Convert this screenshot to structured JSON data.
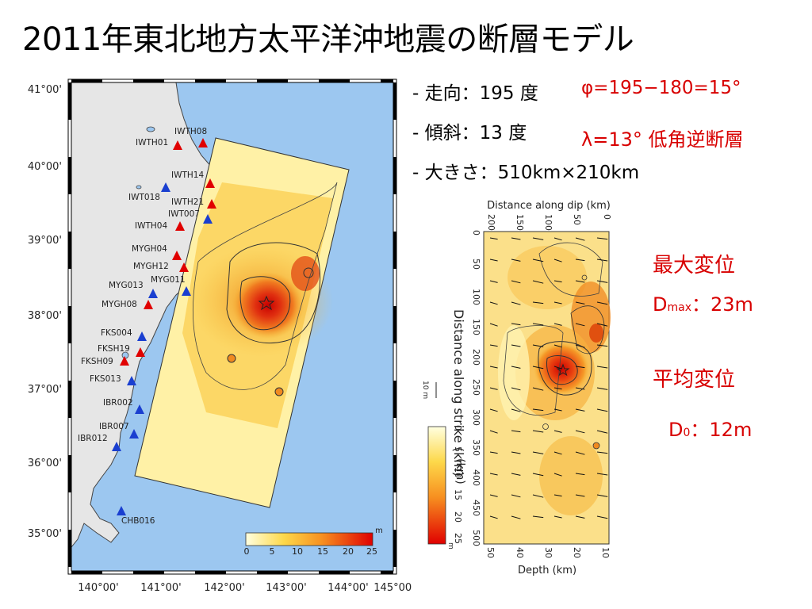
{
  "title": "2011年東北地方太平洋沖地震の断層モデル",
  "params": {
    "strike": "- 走向：195 度",
    "dip": "- 傾斜：13 度",
    "size": "- 大きさ：510km×210km",
    "phi": "φ=195−180=15°",
    "lambda": "λ=13° 低角逆断層"
  },
  "annotations": {
    "max_label": "最大変位",
    "max_D": "D",
    "max_sub": "max",
    "max_value": "：23m",
    "avg_label": "平均変位",
    "avg_D": "D",
    "avg_sub": "0",
    "avg_value": "：12m"
  },
  "map": {
    "lat_labels": [
      "41°00'",
      "40°00'",
      "39°00'",
      "38°00'",
      "37°00'",
      "36°00'",
      "35°00'"
    ],
    "lon_labels": [
      "140°00'",
      "141°00'",
      "142°00'",
      "143°00'",
      "144°00'",
      "145°00'"
    ],
    "stations": [
      {
        "name": "IWTH08",
        "type": "red"
      },
      {
        "name": "IWTH01",
        "type": "red"
      },
      {
        "name": "IWTH14",
        "type": "red"
      },
      {
        "name": "IWT018",
        "type": "blue"
      },
      {
        "name": "IWTH21",
        "type": "red"
      },
      {
        "name": "IWT007",
        "type": "blue"
      },
      {
        "name": "IWTH04",
        "type": "red"
      },
      {
        "name": "MYGH04",
        "type": "red"
      },
      {
        "name": "MYGH12",
        "type": "red"
      },
      {
        "name": "MYG013",
        "type": "blue"
      },
      {
        "name": "MYG011",
        "type": "blue"
      },
      {
        "name": "MYGH08",
        "type": "red"
      },
      {
        "name": "FKS004",
        "type": "blue"
      },
      {
        "name": "FKSH19",
        "type": "red"
      },
      {
        "name": "FKSH09",
        "type": "red"
      },
      {
        "name": "FKS013",
        "type": "blue"
      },
      {
        "name": "IBR002",
        "type": "blue"
      },
      {
        "name": "IBR007",
        "type": "blue"
      },
      {
        "name": "IBR012",
        "type": "blue"
      },
      {
        "name": "CHB016",
        "type": "blue"
      }
    ],
    "colorbar_ticks": [
      "0",
      "5",
      "10",
      "15",
      "20",
      "25"
    ],
    "colorbar_unit": "m",
    "colors": {
      "ocean": "#9cc7f0",
      "land": "#e6e6e6",
      "red_station": "#e00000",
      "blue_station": "#1a3fd0"
    }
  },
  "slip_panel": {
    "top_axis_label": "Distance along dip (km)",
    "top_ticks": [
      "200",
      "150",
      "100",
      "50",
      "0"
    ],
    "left_ticks": [
      "0",
      "50",
      "100",
      "150",
      "200",
      "250",
      "300",
      "350",
      "400",
      "450",
      "500"
    ],
    "right_axis_label": "Distance along strike (km)",
    "bottom_axis_label": "Depth (km)",
    "bottom_ticks": [
      "50",
      "40",
      "30",
      "20",
      "10"
    ],
    "scale_label": "10 m",
    "colorbar_ticks": [
      "0",
      "5",
      "10",
      "15",
      "20",
      "25"
    ],
    "colorbar_label": "(km)",
    "colorbar_unit": "m"
  }
}
